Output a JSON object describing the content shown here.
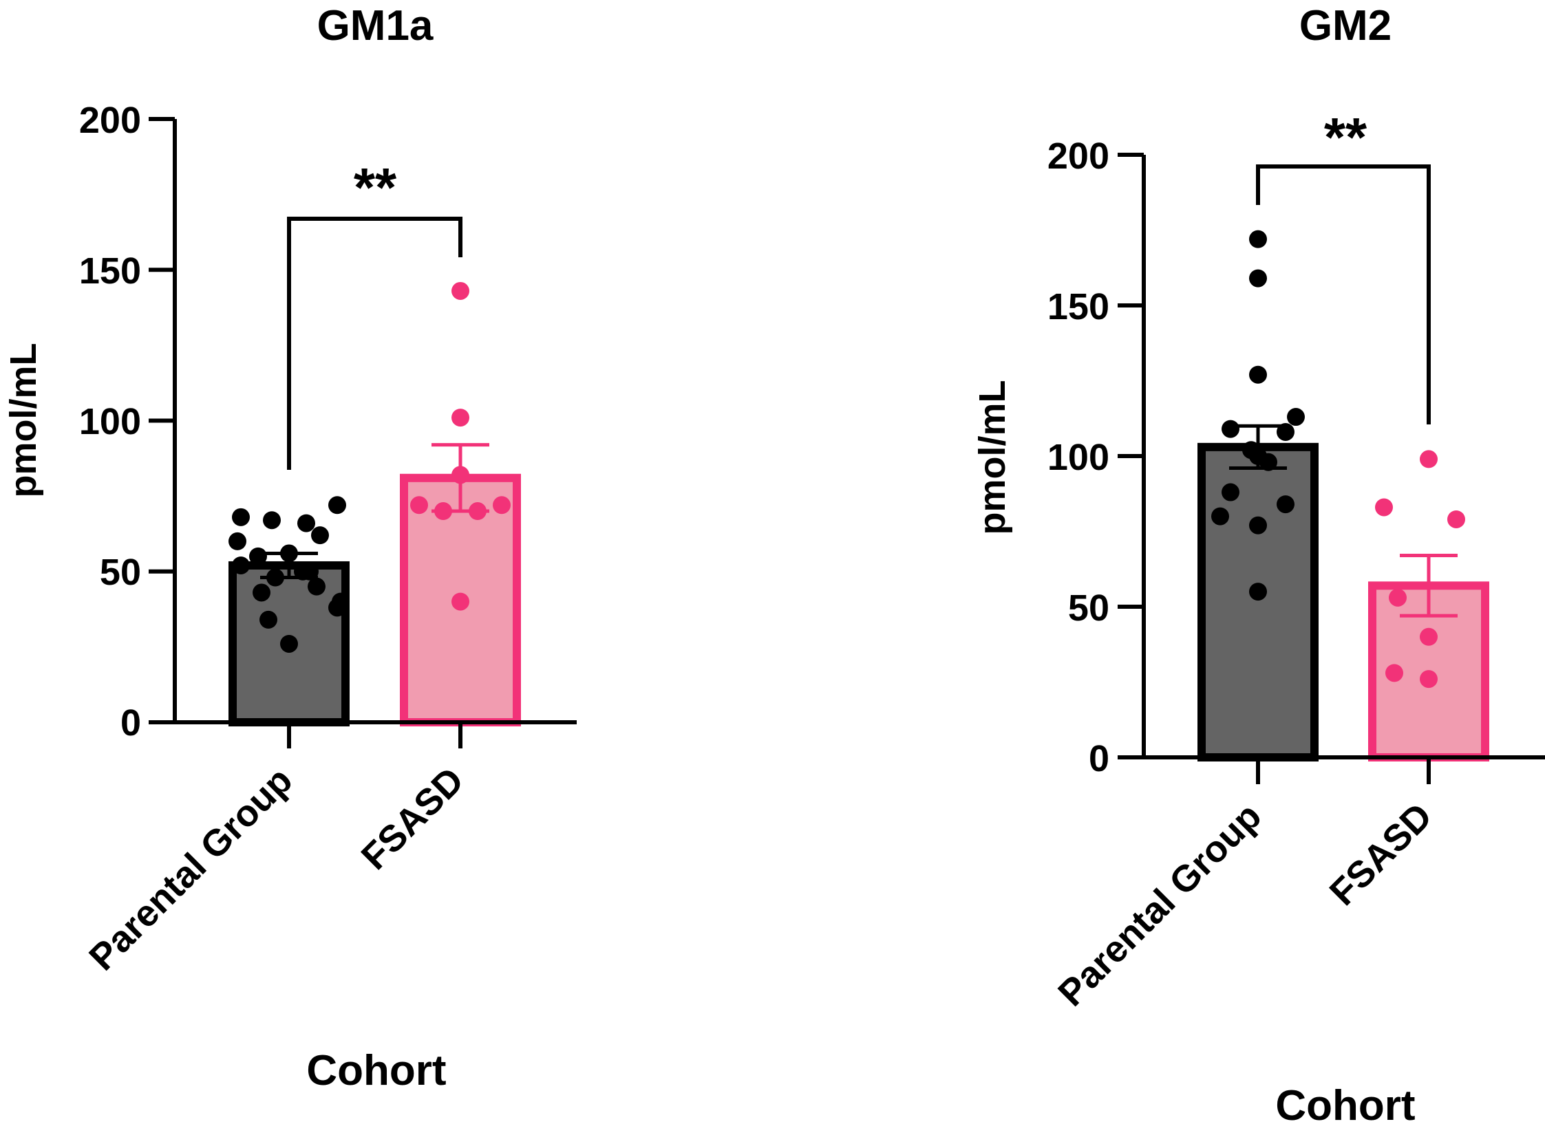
{
  "chart_data": [
    {
      "type": "bar",
      "title": "GM1a",
      "xlabel": "Cohort",
      "ylabel": "pmol/mL",
      "ylim": [
        0,
        200
      ],
      "yticks": [
        0,
        50,
        100,
        150,
        200
      ],
      "ytick_labels": [
        "0",
        "50",
        "100",
        "150",
        "200"
      ],
      "categories": [
        "Parental Group",
        "FSASD"
      ],
      "values": [
        52,
        81
      ],
      "sem": [
        4,
        11
      ],
      "points": [
        [
          68,
          67,
          66,
          72,
          55,
          56,
          62,
          60,
          40,
          48,
          50,
          52,
          38,
          43,
          45,
          26,
          34,
          50
        ],
        [
          143,
          101,
          82,
          72,
          70,
          70,
          72,
          40
        ]
      ],
      "significance": "**",
      "colors": {
        "fill": [
          "#646464",
          "#f19cb0"
        ],
        "edge": [
          "#000000",
          "#f23278"
        ],
        "points": [
          "#000000",
          "#f23278"
        ]
      }
    },
    {
      "type": "bar",
      "title": "GM2",
      "xlabel": "Cohort",
      "ylabel": "pmol/mL",
      "ylim": [
        0,
        200
      ],
      "yticks": [
        0,
        50,
        100,
        150,
        200
      ],
      "ytick_labels": [
        "0",
        "50",
        "100",
        "150",
        "200"
      ],
      "categories": [
        "Parental Group",
        "FSASD"
      ],
      "values": [
        103,
        57
      ],
      "sem": [
        7,
        10
      ],
      "points": [
        [
          172,
          159,
          127,
          113,
          109,
          108,
          102,
          100,
          98,
          88,
          84,
          80,
          77,
          55
        ],
        [
          99,
          83,
          79,
          53,
          40,
          28,
          26
        ]
      ],
      "significance": "**",
      "colors": {
        "fill": [
          "#646464",
          "#f19cb0"
        ],
        "edge": [
          "#000000",
          "#f23278"
        ],
        "points": [
          "#000000",
          "#f23278"
        ]
      }
    }
  ]
}
